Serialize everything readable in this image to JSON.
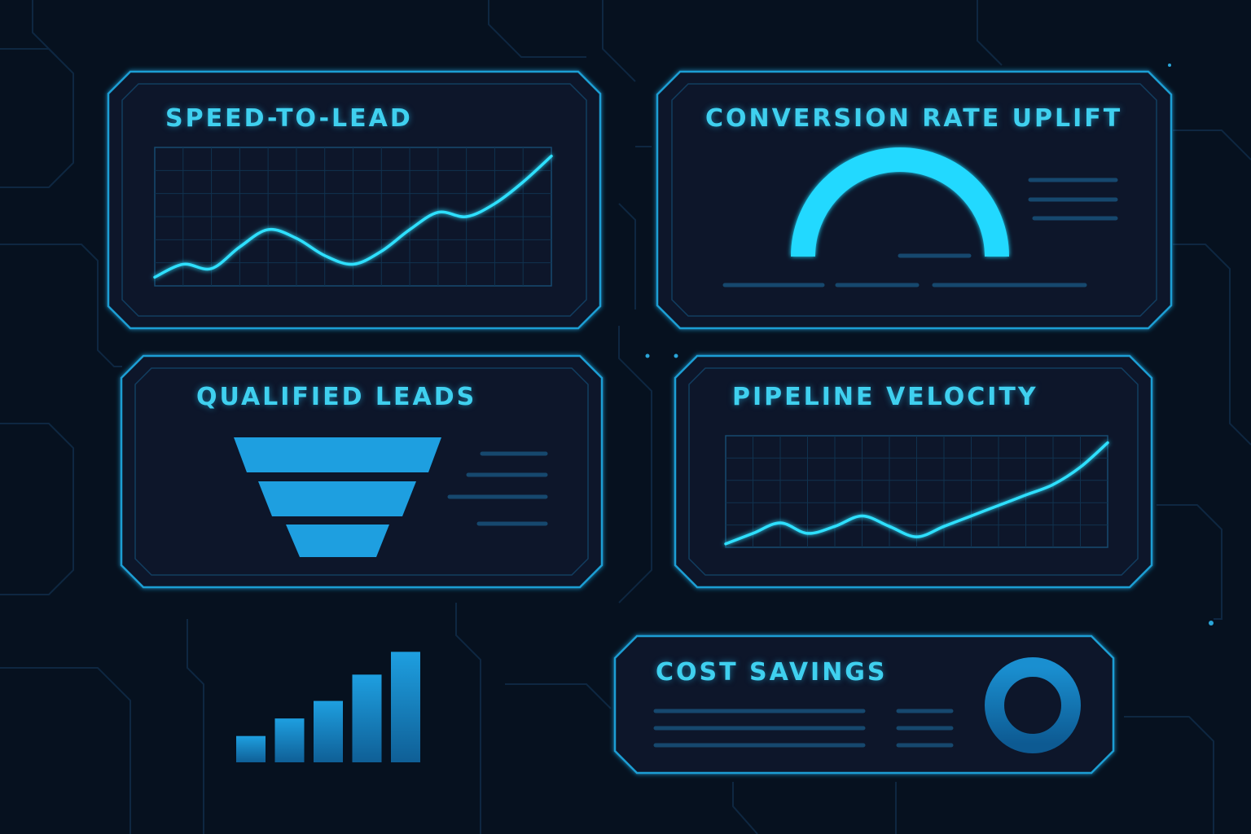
{
  "colors": {
    "background": "#06111f",
    "panel_border": "#1e9ed4",
    "accent": "#2ee0ff",
    "bar": "#1a88c8",
    "muted_line": "#16486e",
    "title": "#3fd0ef"
  },
  "panels": {
    "speed_to_lead": {
      "title": "SPEED-TO-LEAD"
    },
    "conversion_rate": {
      "title": "CONVERSION RATE UPLIFT",
      "gauge_level": 0.5
    },
    "qualified_leads": {
      "title": "QUALIFIED LEADS",
      "funnel_stages": 3
    },
    "pipeline_velocity": {
      "title": "PIPELINE VELOCITY"
    },
    "cost_savings": {
      "title": "COST SAVINGS",
      "ring_icon": "ring-icon"
    }
  },
  "chart_data": [
    {
      "type": "line",
      "panel": "speed_to_lead",
      "title": "",
      "x": [
        0,
        1,
        2,
        3,
        4,
        5,
        6,
        7,
        8,
        9,
        10,
        11,
        12,
        13,
        14
      ],
      "values": [
        2,
        5,
        4,
        9,
        13,
        11,
        7,
        5,
        8,
        13,
        17,
        16,
        19,
        24,
        30
      ],
      "xlabel": "",
      "ylabel": "",
      "ylim": [
        0,
        32
      ],
      "grid": true
    },
    {
      "type": "line",
      "panel": "pipeline_velocity",
      "title": "",
      "x": [
        0,
        1,
        2,
        3,
        4,
        5,
        6,
        7,
        8,
        9,
        10,
        11,
        12,
        13,
        14
      ],
      "values": [
        2,
        8,
        14,
        8,
        12,
        18,
        12,
        6,
        12,
        18,
        24,
        30,
        36,
        46,
        60
      ],
      "xlabel": "",
      "ylabel": "",
      "ylim": [
        0,
        64
      ],
      "grid": true
    },
    {
      "type": "bar",
      "title": "",
      "categories": [
        "",
        "",
        "",
        "",
        ""
      ],
      "values": [
        1.5,
        2.5,
        3.5,
        5,
        6.3
      ],
      "xlabel": "",
      "ylabel": "",
      "ylim": [
        0,
        6.5
      ]
    }
  ]
}
